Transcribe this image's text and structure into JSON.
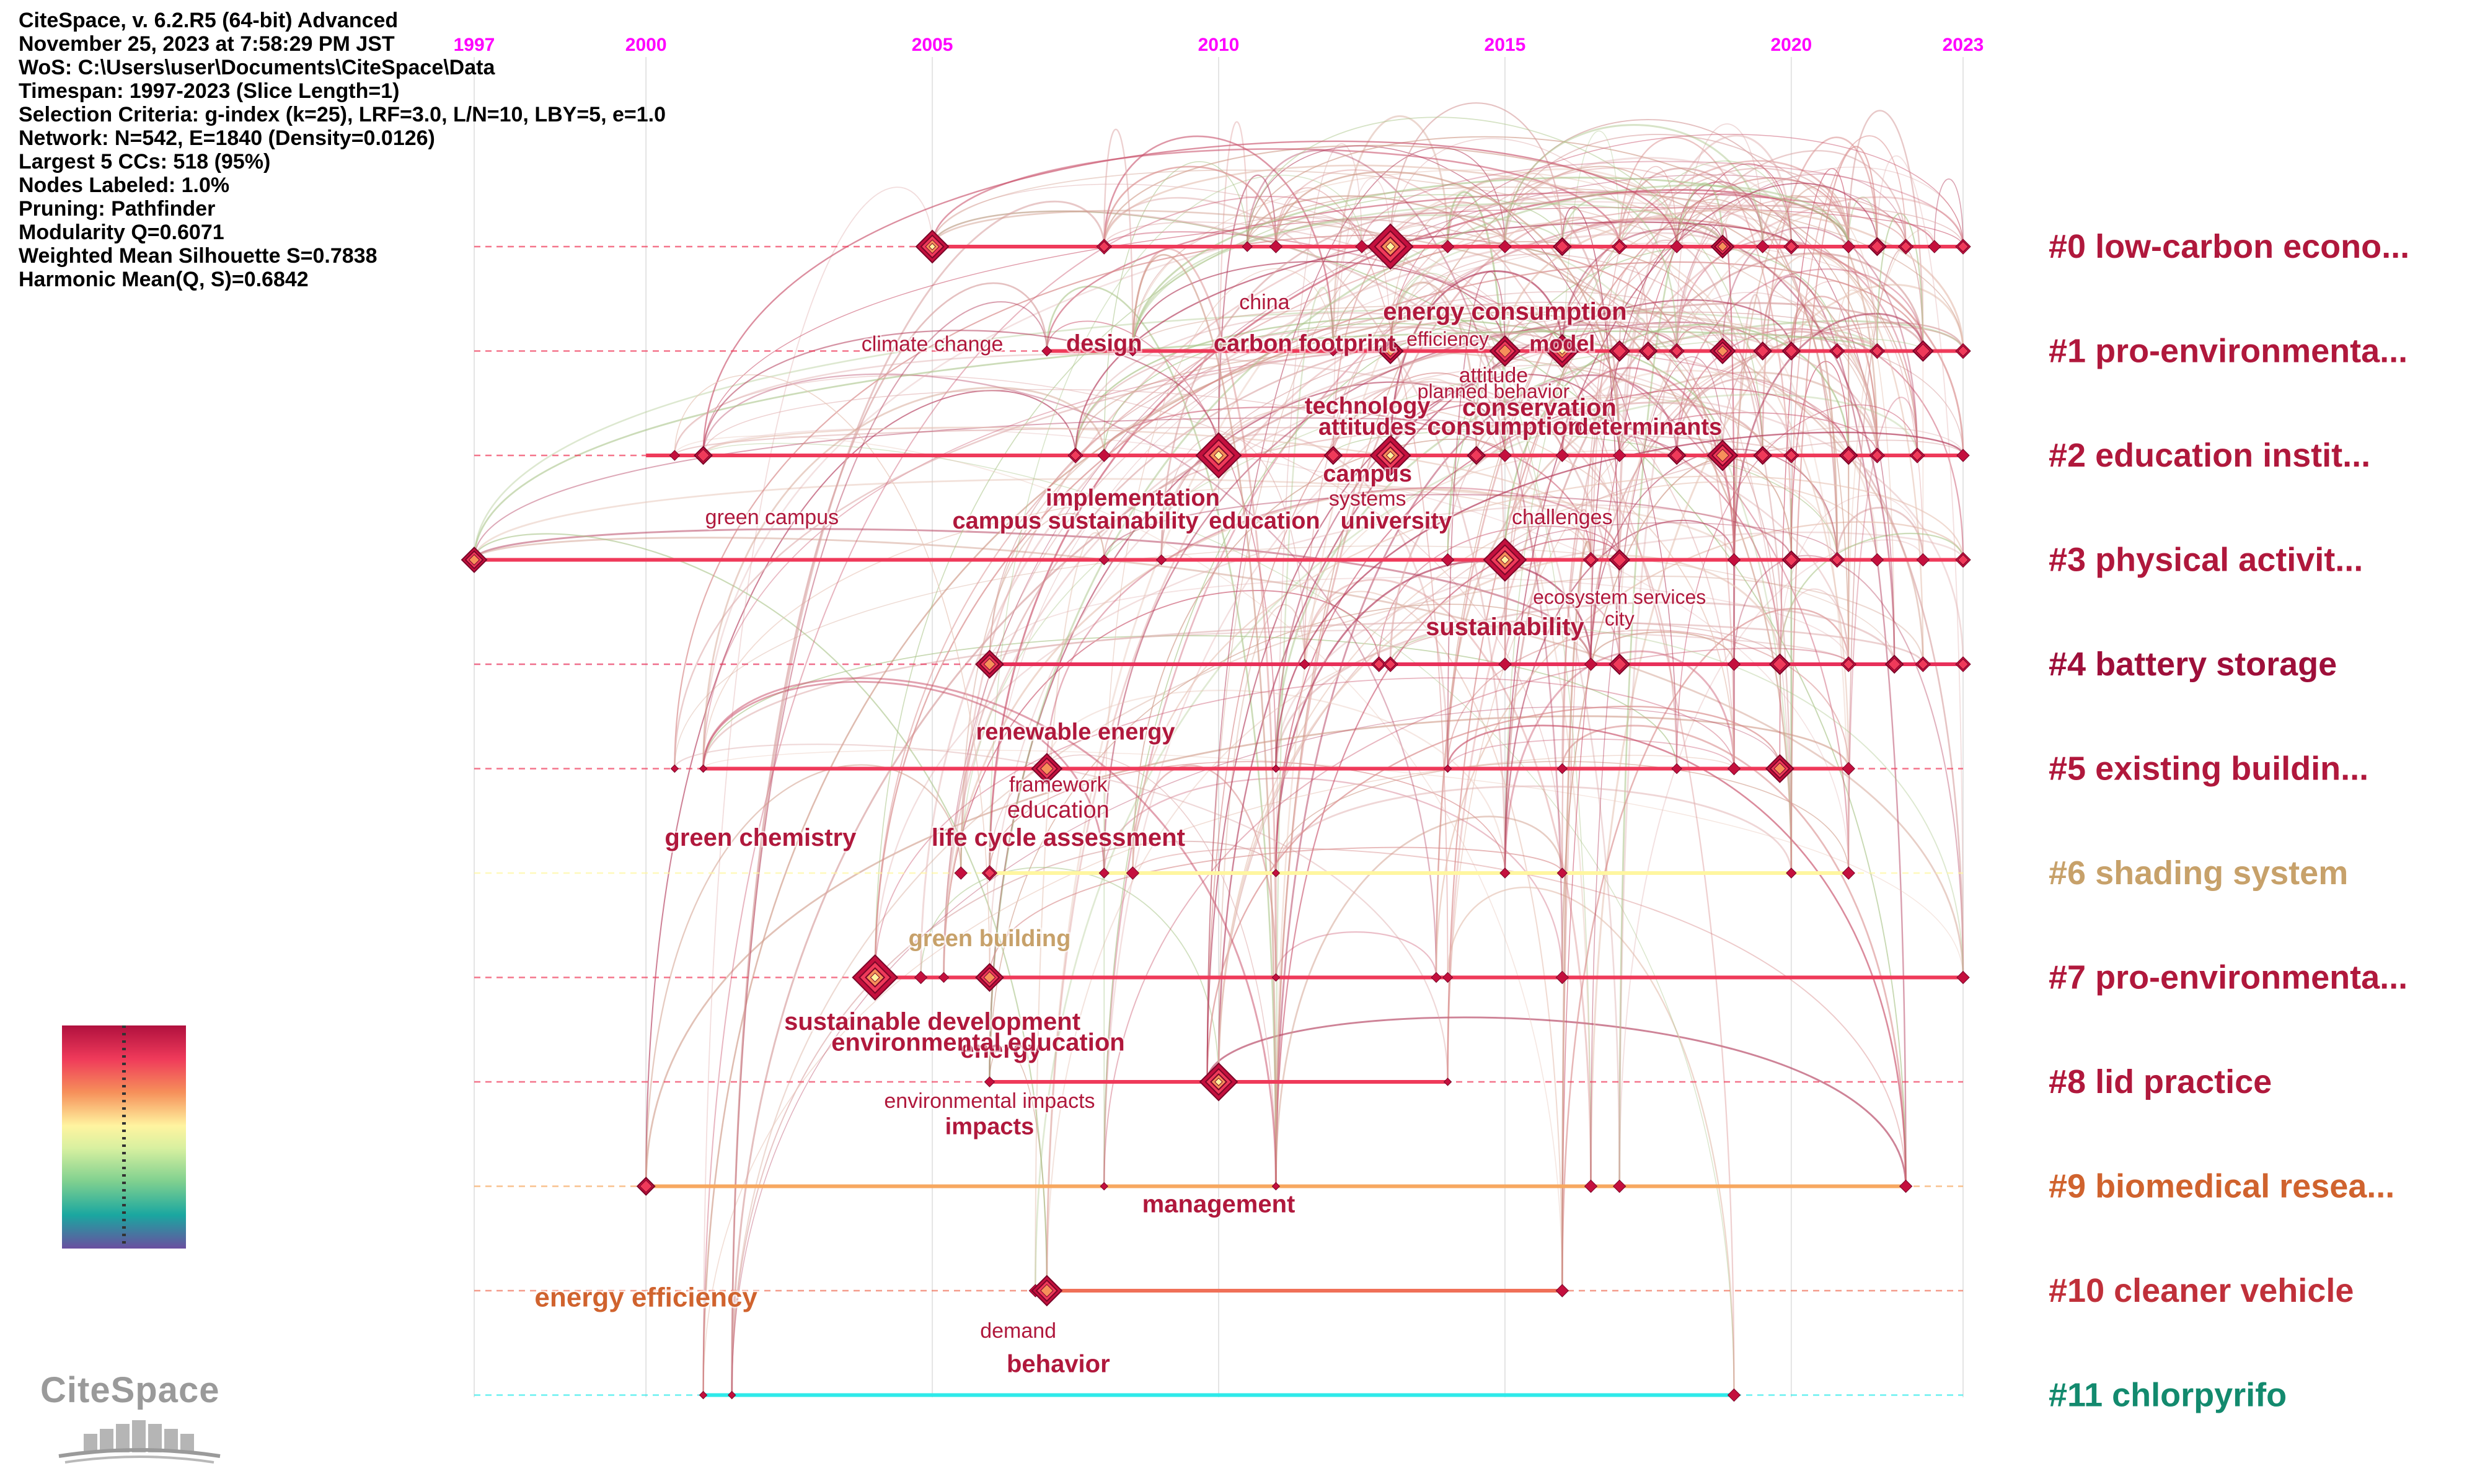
{
  "info": {
    "lines": [
      "CiteSpace, v. 6.2.R5 (64-bit) Advanced",
      "November 25, 2023 at 7:58:29 PM JST",
      "WoS: C:\\Users\\user\\Documents\\CiteSpace\\Data",
      "Timespan: 1997-2023 (Slice Length=1)",
      "Selection Criteria: g-index (k=25), LRF=3.0, L/N=10, LBY=5, e=1.0",
      "Network: N=542, E=1840 (Density=0.0126)",
      "Largest 5 CCs: 518 (95%)",
      "Nodes Labeled: 1.0%",
      "Pruning: Pathfinder",
      "Modularity Q=0.6071",
      "Weighted Mean Silhouette S=0.7838",
      "Harmonic Mean(Q, S)=0.6842"
    ]
  },
  "logo": {
    "text": "CiteSpace"
  },
  "colors": {
    "axis_year": "#ff00ff",
    "header": "#000000"
  },
  "chart_data": {
    "type": "timeline",
    "x_range": [
      1997,
      2023
    ],
    "year_ticks": [
      1997,
      2000,
      2005,
      2010,
      2015,
      2020,
      2023
    ],
    "clusters": [
      {
        "id": 0,
        "label": "#0 low-carbon econo...",
        "color": "#b0183c",
        "line_color": "#ef3a5a",
        "start": 2005,
        "end": 2023
      },
      {
        "id": 1,
        "label": "#1 pro-environmenta...",
        "color": "#b0183c",
        "line_color": "#ef3a5a",
        "start": 2007,
        "end": 2023
      },
      {
        "id": 2,
        "label": "#2 education instit...",
        "color": "#b0183c",
        "line_color": "#ef3a5a",
        "start": 2000,
        "end": 2023
      },
      {
        "id": 3,
        "label": "#3 physical activit...",
        "color": "#b0183c",
        "line_color": "#ef3a5a",
        "start": 1997,
        "end": 2023
      },
      {
        "id": 4,
        "label": "#4 battery storage",
        "color": "#9e0f3a",
        "line_color": "#e8305a",
        "start": 2006,
        "end": 2023
      },
      {
        "id": 5,
        "label": "#5 existing buildin...",
        "color": "#b0183c",
        "line_color": "#ef3a5a",
        "start": 2001,
        "end": 2021
      },
      {
        "id": 6,
        "label": "#6 shading system",
        "color": "#c7a16a",
        "line_color": "#fff6a0",
        "start": 2006,
        "end": 2021
      },
      {
        "id": 7,
        "label": "#7 pro-environmenta...",
        "color": "#b0183c",
        "line_color": "#ef3a5a",
        "start": 2004,
        "end": 2023
      },
      {
        "id": 8,
        "label": "#8 lid practice",
        "color": "#b0183c",
        "line_color": "#ef3a5a",
        "start": 2006,
        "end": 2014
      },
      {
        "id": 9,
        "label": "#9 biomedical resea...",
        "color": "#d0632e",
        "line_color": "#f7a860",
        "start": 2000,
        "end": 2022
      },
      {
        "id": 10,
        "label": "#10 cleaner vehicle",
        "color": "#c0303a",
        "line_color": "#f07058",
        "start": 2007,
        "end": 2016
      },
      {
        "id": 11,
        "label": "#11 chlorpyrifo",
        "color": "#138a6e",
        "line_color": "#2eeaea",
        "start": 2001,
        "end": 2019
      }
    ],
    "nodes": [
      {
        "c": 0,
        "y": 2005,
        "s": 26
      },
      {
        "c": 0,
        "y": 2008,
        "s": 12
      },
      {
        "c": 0,
        "y": 2010.5,
        "s": 8
      },
      {
        "c": 0,
        "y": 2011,
        "s": 10
      },
      {
        "c": 0,
        "y": 2012.5,
        "s": 10
      },
      {
        "c": 0,
        "y": 2013,
        "s": 36
      },
      {
        "c": 0,
        "y": 2014,
        "s": 10
      },
      {
        "c": 0,
        "y": 2015,
        "s": 10
      },
      {
        "c": 0,
        "y": 2016,
        "s": 14
      },
      {
        "c": 0,
        "y": 2017,
        "s": 12
      },
      {
        "c": 0,
        "y": 2018,
        "s": 10
      },
      {
        "c": 0,
        "y": 2018.8,
        "s": 18
      },
      {
        "c": 0,
        "y": 2019.5,
        "s": 10
      },
      {
        "c": 0,
        "y": 2020,
        "s": 12
      },
      {
        "c": 0,
        "y": 2021,
        "s": 10
      },
      {
        "c": 0,
        "y": 2021.5,
        "s": 14
      },
      {
        "c": 0,
        "y": 2022,
        "s": 12
      },
      {
        "c": 0,
        "y": 2022.5,
        "s": 10
      },
      {
        "c": 0,
        "y": 2023,
        "s": 12
      },
      {
        "c": 1,
        "y": 2007,
        "s": 8
      },
      {
        "c": 1,
        "y": 2008.5,
        "s": 8
      },
      {
        "c": 1,
        "y": 2012,
        "s": 8
      },
      {
        "c": 1,
        "y": 2013,
        "s": 20
      },
      {
        "c": 1,
        "y": 2015,
        "s": 24
      },
      {
        "c": 1,
        "y": 2016,
        "s": 26
      },
      {
        "c": 1,
        "y": 2017,
        "s": 16
      },
      {
        "c": 1,
        "y": 2017.5,
        "s": 14
      },
      {
        "c": 1,
        "y": 2018,
        "s": 12
      },
      {
        "c": 1,
        "y": 2018.8,
        "s": 20
      },
      {
        "c": 1,
        "y": 2019.5,
        "s": 14
      },
      {
        "c": 1,
        "y": 2020,
        "s": 14
      },
      {
        "c": 1,
        "y": 2020.8,
        "s": 12
      },
      {
        "c": 1,
        "y": 2021.5,
        "s": 12
      },
      {
        "c": 1,
        "y": 2022.3,
        "s": 16
      },
      {
        "c": 1,
        "y": 2023,
        "s": 12
      },
      {
        "c": 2,
        "y": 2000.5,
        "s": 8
      },
      {
        "c": 2,
        "y": 2001,
        "s": 14
      },
      {
        "c": 2,
        "y": 2007.5,
        "s": 12
      },
      {
        "c": 2,
        "y": 2008,
        "s": 10
      },
      {
        "c": 2,
        "y": 2010,
        "s": 36
      },
      {
        "c": 2,
        "y": 2012,
        "s": 14
      },
      {
        "c": 2,
        "y": 2013,
        "s": 32
      },
      {
        "c": 2,
        "y": 2014.5,
        "s": 14
      },
      {
        "c": 2,
        "y": 2015,
        "s": 10
      },
      {
        "c": 2,
        "y": 2016,
        "s": 10
      },
      {
        "c": 2,
        "y": 2017,
        "s": 10
      },
      {
        "c": 2,
        "y": 2018,
        "s": 14
      },
      {
        "c": 2,
        "y": 2018.8,
        "s": 24
      },
      {
        "c": 2,
        "y": 2019.5,
        "s": 14
      },
      {
        "c": 2,
        "y": 2020,
        "s": 12
      },
      {
        "c": 2,
        "y": 2021,
        "s": 14
      },
      {
        "c": 2,
        "y": 2021.5,
        "s": 12
      },
      {
        "c": 2,
        "y": 2022.2,
        "s": 12
      },
      {
        "c": 2,
        "y": 2023,
        "s": 10
      },
      {
        "c": 3,
        "y": 1997,
        "s": 20
      },
      {
        "c": 3,
        "y": 2008,
        "s": 8
      },
      {
        "c": 3,
        "y": 2009,
        "s": 8
      },
      {
        "c": 3,
        "y": 2014,
        "s": 10
      },
      {
        "c": 3,
        "y": 2015,
        "s": 34
      },
      {
        "c": 3,
        "y": 2016.5,
        "s": 12
      },
      {
        "c": 3,
        "y": 2017,
        "s": 16
      },
      {
        "c": 3,
        "y": 2019,
        "s": 10
      },
      {
        "c": 3,
        "y": 2020,
        "s": 14
      },
      {
        "c": 3,
        "y": 2020.8,
        "s": 12
      },
      {
        "c": 3,
        "y": 2021.5,
        "s": 10
      },
      {
        "c": 3,
        "y": 2022.3,
        "s": 10
      },
      {
        "c": 3,
        "y": 2023,
        "s": 12
      },
      {
        "c": 4,
        "y": 2006,
        "s": 22
      },
      {
        "c": 4,
        "y": 2011.5,
        "s": 8
      },
      {
        "c": 4,
        "y": 2012.8,
        "s": 12
      },
      {
        "c": 4,
        "y": 2013,
        "s": 12
      },
      {
        "c": 4,
        "y": 2015,
        "s": 10
      },
      {
        "c": 4,
        "y": 2016.5,
        "s": 10
      },
      {
        "c": 4,
        "y": 2017,
        "s": 16
      },
      {
        "c": 4,
        "y": 2019,
        "s": 10
      },
      {
        "c": 4,
        "y": 2019.8,
        "s": 16
      },
      {
        "c": 4,
        "y": 2021,
        "s": 12
      },
      {
        "c": 4,
        "y": 2021.8,
        "s": 14
      },
      {
        "c": 4,
        "y": 2022.3,
        "s": 12
      },
      {
        "c": 4,
        "y": 2023,
        "s": 12
      },
      {
        "c": 5,
        "y": 2000.5,
        "s": 6
      },
      {
        "c": 5,
        "y": 2001,
        "s": 6
      },
      {
        "c": 5,
        "y": 2007,
        "s": 24
      },
      {
        "c": 5,
        "y": 2011,
        "s": 6
      },
      {
        "c": 5,
        "y": 2014,
        "s": 6
      },
      {
        "c": 5,
        "y": 2016,
        "s": 8
      },
      {
        "c": 5,
        "y": 2018,
        "s": 8
      },
      {
        "c": 5,
        "y": 2019,
        "s": 10
      },
      {
        "c": 5,
        "y": 2019.8,
        "s": 22
      },
      {
        "c": 5,
        "y": 2021,
        "s": 10
      },
      {
        "c": 6,
        "y": 2005.5,
        "s": 10
      },
      {
        "c": 6,
        "y": 2006,
        "s": 12
      },
      {
        "c": 6,
        "y": 2008,
        "s": 8
      },
      {
        "c": 6,
        "y": 2008.5,
        "s": 10
      },
      {
        "c": 6,
        "y": 2011,
        "s": 6
      },
      {
        "c": 6,
        "y": 2015,
        "s": 8
      },
      {
        "c": 6,
        "y": 2016,
        "s": 8
      },
      {
        "c": 6,
        "y": 2020,
        "s": 8
      },
      {
        "c": 6,
        "y": 2021,
        "s": 10
      },
      {
        "c": 7,
        "y": 2004,
        "s": 36
      },
      {
        "c": 7,
        "y": 2004.8,
        "s": 10
      },
      {
        "c": 7,
        "y": 2005.2,
        "s": 8
      },
      {
        "c": 7,
        "y": 2006,
        "s": 22
      },
      {
        "c": 7,
        "y": 2011,
        "s": 6
      },
      {
        "c": 7,
        "y": 2013.8,
        "s": 8
      },
      {
        "c": 7,
        "y": 2014,
        "s": 8
      },
      {
        "c": 7,
        "y": 2016,
        "s": 10
      },
      {
        "c": 7,
        "y": 2023,
        "s": 10
      },
      {
        "c": 8,
        "y": 2006,
        "s": 8
      },
      {
        "c": 8,
        "y": 2009.8,
        "s": 10
      },
      {
        "c": 8,
        "y": 2010,
        "s": 30
      },
      {
        "c": 8,
        "y": 2014,
        "s": 6
      },
      {
        "c": 9,
        "y": 2000,
        "s": 14
      },
      {
        "c": 9,
        "y": 2008,
        "s": 6
      },
      {
        "c": 9,
        "y": 2011,
        "s": 6
      },
      {
        "c": 9,
        "y": 2016.5,
        "s": 10
      },
      {
        "c": 9,
        "y": 2017,
        "s": 10
      },
      {
        "c": 9,
        "y": 2022,
        "s": 10
      },
      {
        "c": 10,
        "y": 2006.8,
        "s": 10
      },
      {
        "c": 10,
        "y": 2007,
        "s": 24
      },
      {
        "c": 10,
        "y": 2016,
        "s": 10
      },
      {
        "c": 11,
        "y": 2001,
        "s": 6
      },
      {
        "c": 11,
        "y": 2001.5,
        "s": 6
      },
      {
        "c": 11,
        "y": 2019,
        "s": 10
      }
    ],
    "keywords": [
      {
        "text": "climate change",
        "c": 0,
        "x": 2005,
        "dy": 1,
        "size": 34,
        "weight": "normal",
        "color": "#b0183c"
      },
      {
        "text": "design",
        "c": 0,
        "x": 2008,
        "dy": 1,
        "size": 38,
        "weight": "bold",
        "color": "#b0183c"
      },
      {
        "text": "china",
        "c": 0,
        "x": 2010.8,
        "dy": 0.6,
        "size": 34,
        "weight": "normal",
        "color": "#b0183c"
      },
      {
        "text": "carbon footprint",
        "c": 0,
        "x": 2011.5,
        "dy": 1,
        "size": 38,
        "weight": "bold",
        "color": "#b0183c"
      },
      {
        "text": "energy consumption",
        "c": 0,
        "x": 2015,
        "dy": 0.7,
        "size": 40,
        "weight": "bold",
        "color": "#b0183c"
      },
      {
        "text": "efficiency",
        "c": 0,
        "x": 2014,
        "dy": 0.95,
        "size": 32,
        "weight": "normal",
        "color": "#b0183c"
      },
      {
        "text": "model",
        "c": 0,
        "x": 2016,
        "dy": 1,
        "size": 36,
        "weight": "bold",
        "color": "#b0183c"
      },
      {
        "text": "attitude",
        "c": 1,
        "x": 2014.8,
        "dy": 0.3,
        "size": 34,
        "weight": "normal",
        "color": "#b0183c"
      },
      {
        "text": "planned behavior",
        "c": 1,
        "x": 2014.8,
        "dy": 0.45,
        "size": 32,
        "weight": "normal",
        "color": "#b0183c"
      },
      {
        "text": "technology",
        "c": 1,
        "x": 2012.6,
        "dy": 0.6,
        "size": 38,
        "weight": "bold",
        "color": "#b0183c"
      },
      {
        "text": "conservation",
        "c": 1,
        "x": 2015.6,
        "dy": 0.62,
        "size": 40,
        "weight": "bold",
        "color": "#b0183c"
      },
      {
        "text": "attitudes",
        "c": 1,
        "x": 2012.6,
        "dy": 0.8,
        "size": 38,
        "weight": "bold",
        "color": "#b0183c"
      },
      {
        "text": "consumption",
        "c": 1,
        "x": 2015,
        "dy": 0.8,
        "size": 40,
        "weight": "bold",
        "color": "#b0183c"
      },
      {
        "text": "determinants",
        "c": 1,
        "x": 2017.5,
        "dy": 0.8,
        "size": 38,
        "weight": "bold",
        "color": "#b0183c"
      },
      {
        "text": "campus",
        "c": 2,
        "x": 2012.6,
        "dy": 0.25,
        "size": 38,
        "weight": "bold",
        "color": "#b0183c"
      },
      {
        "text": "systems",
        "c": 2,
        "x": 2012.6,
        "dy": 0.48,
        "size": 34,
        "weight": "normal",
        "color": "#b0183c"
      },
      {
        "text": "implementation",
        "c": 2,
        "x": 2008.5,
        "dy": 0.48,
        "size": 38,
        "weight": "bold",
        "color": "#b0183c"
      },
      {
        "text": "green campus",
        "c": 2,
        "x": 2002.2,
        "dy": 0.66,
        "size": 34,
        "weight": "normal",
        "color": "#b0183c"
      },
      {
        "text": "campus sustainability",
        "c": 2,
        "x": 2007.5,
        "dy": 0.7,
        "size": 38,
        "weight": "bold",
        "color": "#b0183c"
      },
      {
        "text": "education",
        "c": 2,
        "x": 2010.8,
        "dy": 0.7,
        "size": 38,
        "weight": "bold",
        "color": "#b0183c"
      },
      {
        "text": "university",
        "c": 2,
        "x": 2013.1,
        "dy": 0.7,
        "size": 38,
        "weight": "bold",
        "color": "#b0183c"
      },
      {
        "text": "challenges",
        "c": 2,
        "x": 2016,
        "dy": 0.66,
        "size": 34,
        "weight": "normal",
        "color": "#b0183c"
      },
      {
        "text": "ecosystem services",
        "c": 3,
        "x": 2017,
        "dy": 0.42,
        "size": 32,
        "weight": "normal",
        "color": "#b0183c"
      },
      {
        "text": "city",
        "c": 3,
        "x": 2017,
        "dy": 0.63,
        "size": 32,
        "weight": "normal",
        "color": "#b0183c"
      },
      {
        "text": "sustainability",
        "c": 3,
        "x": 2015,
        "dy": 0.72,
        "size": 40,
        "weight": "bold",
        "color": "#b0183c"
      },
      {
        "text": "renewable energy",
        "c": 4,
        "x": 2007.5,
        "dy": 0.72,
        "size": 38,
        "weight": "bold",
        "color": "#b0183c"
      },
      {
        "text": "framework",
        "c": 5,
        "x": 2007.2,
        "dy": 0.22,
        "size": 34,
        "weight": "normal",
        "color": "#b0183c"
      },
      {
        "text": "education",
        "c": 5,
        "x": 2007.2,
        "dy": 0.47,
        "size": 38,
        "weight": "normal",
        "color": "#b0183c"
      },
      {
        "text": "green chemistry",
        "c": 5,
        "x": 2002,
        "dy": 0.74,
        "size": 40,
        "weight": "bold",
        "color": "#b0183c"
      },
      {
        "text": "life cycle assessment",
        "c": 5,
        "x": 2007.2,
        "dy": 0.74,
        "size": 40,
        "weight": "bold",
        "color": "#b0183c"
      },
      {
        "text": "green building",
        "c": 6,
        "x": 2006,
        "dy": 0.7,
        "size": 38,
        "weight": "bold",
        "color": "#c7a16a"
      },
      {
        "text": "sustainable development",
        "c": 7,
        "x": 2005,
        "dy": 0.5,
        "size": 40,
        "weight": "bold",
        "color": "#b0183c"
      },
      {
        "text": "energy",
        "c": 7,
        "x": 2006.2,
        "dy": 0.77,
        "size": 40,
        "weight": "bold",
        "color": "#b0183c"
      },
      {
        "text": "environmental education",
        "c": 7,
        "x": 2005.8,
        "dy": 0.7,
        "size": 40,
        "weight": "bold",
        "color": "#b0183c"
      },
      {
        "text": "environmental impacts",
        "c": 8,
        "x": 2006,
        "dy": 0.25,
        "size": 34,
        "weight": "normal",
        "color": "#b0183c"
      },
      {
        "text": "impacts",
        "c": 8,
        "x": 2006,
        "dy": 0.5,
        "size": 38,
        "weight": "bold",
        "color": "#b0183c"
      },
      {
        "text": "management",
        "c": 9,
        "x": 2010,
        "dy": 0.25,
        "size": 40,
        "weight": "bold",
        "color": "#b0183c"
      },
      {
        "text": "energy efficiency",
        "c": 10,
        "x": 2000,
        "dy": 0.15,
        "size": 44,
        "weight": "bold",
        "color": "#d0632e"
      },
      {
        "text": "demand",
        "c": 10,
        "x": 2006.5,
        "dy": 0.45,
        "size": 34,
        "weight": "normal",
        "color": "#b0183c"
      },
      {
        "text": "behavior",
        "c": 10,
        "x": 2007.2,
        "dy": 0.78,
        "size": 40,
        "weight": "bold",
        "color": "#b0183c"
      }
    ]
  }
}
